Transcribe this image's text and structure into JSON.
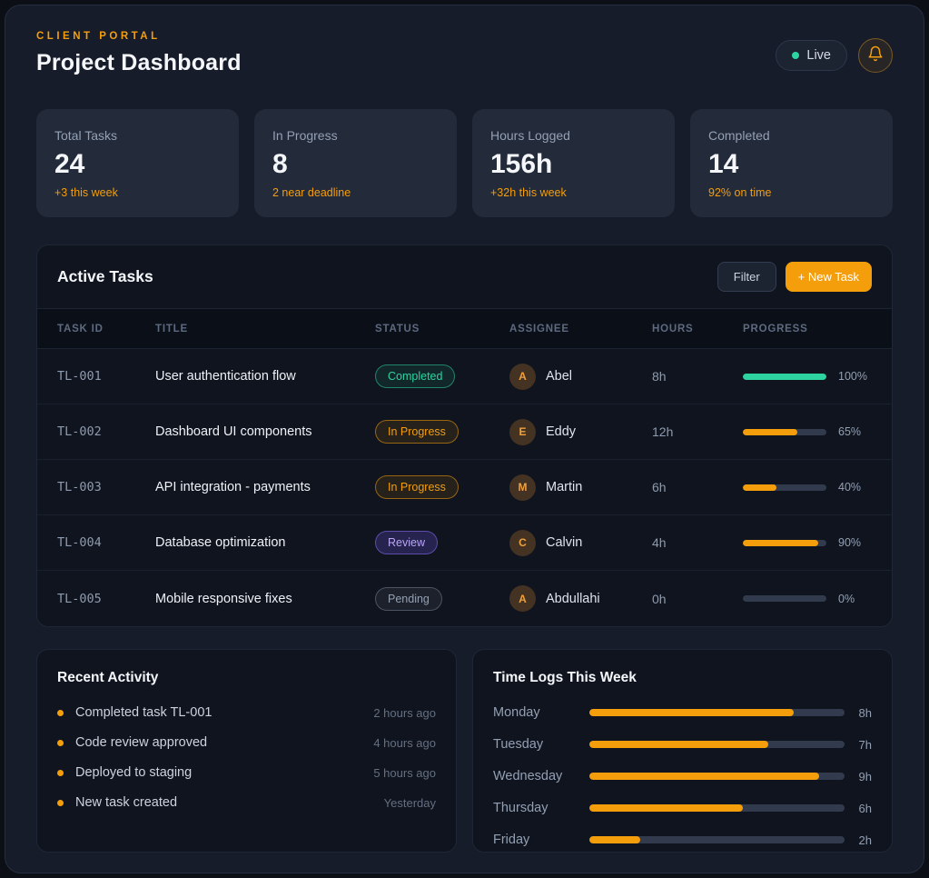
{
  "header": {
    "eyebrow": "CLIENT PORTAL",
    "title": "Project Dashboard",
    "live_label": "Live"
  },
  "stats": [
    {
      "label": "Total Tasks",
      "value": "24",
      "sub": "+3 this week"
    },
    {
      "label": "In Progress",
      "value": "8",
      "sub": "2 near deadline"
    },
    {
      "label": "Hours Logged",
      "value": "156h",
      "sub": "+32h this week"
    },
    {
      "label": "Completed",
      "value": "14",
      "sub": "92% on time"
    }
  ],
  "tasks": {
    "title": "Active Tasks",
    "filter_label": "Filter",
    "new_task_label": "+ New Task",
    "columns": [
      "Task ID",
      "Title",
      "Status",
      "Assignee",
      "Hours",
      "Progress"
    ],
    "rows": [
      {
        "id": "TL-001",
        "title": "User authentication flow",
        "status": "Completed",
        "status_variant": "completed",
        "avatar": "A",
        "assignee": "Abel",
        "hours": "8h",
        "progress": 100,
        "progress_label": "100%",
        "bar_color": "#2dd4a0"
      },
      {
        "id": "TL-002",
        "title": "Dashboard UI components",
        "status": "In Progress",
        "status_variant": "in-progress",
        "avatar": "E",
        "assignee": "Eddy",
        "hours": "12h",
        "progress": 65,
        "progress_label": "65%",
        "bar_color": "#f59e0b"
      },
      {
        "id": "TL-003",
        "title": "API integration - payments",
        "status": "In Progress",
        "status_variant": "in-progress",
        "avatar": "M",
        "assignee": "Martin",
        "hours": "6h",
        "progress": 40,
        "progress_label": "40%",
        "bar_color": "#f59e0b"
      },
      {
        "id": "TL-004",
        "title": "Database optimization",
        "status": "Review",
        "status_variant": "review",
        "avatar": "C",
        "assignee": "Calvin",
        "hours": "4h",
        "progress": 90,
        "progress_label": "90%",
        "bar_color": "#f59e0b"
      },
      {
        "id": "TL-005",
        "title": "Mobile responsive fixes",
        "status": "Pending",
        "status_variant": "pending",
        "avatar": "A",
        "assignee": "Abdullahi",
        "hours": "0h",
        "progress": 0,
        "progress_label": "0%",
        "bar_color": "#f59e0b"
      }
    ]
  },
  "activity": {
    "title": "Recent Activity",
    "items": [
      {
        "text": "Completed task TL-001",
        "time": "2 hours ago"
      },
      {
        "text": "Code review approved",
        "time": "4 hours ago"
      },
      {
        "text": "Deployed to staging",
        "time": "5 hours ago"
      },
      {
        "text": "New task created",
        "time": "Yesterday"
      }
    ]
  },
  "time_logs": {
    "title": "Time Logs This Week",
    "chart_data": {
      "type": "bar",
      "categories": [
        "Monday",
        "Tuesday",
        "Wednesday",
        "Thursday",
        "Friday"
      ],
      "values": [
        8,
        7,
        9,
        6,
        2
      ],
      "unit": "h",
      "max": 10,
      "bar_color": "#f59e0b"
    },
    "days": [
      {
        "day": "Monday",
        "hours": 8,
        "label": "8h"
      },
      {
        "day": "Tuesday",
        "hours": 7,
        "label": "7h"
      },
      {
        "day": "Wednesday",
        "hours": 9,
        "label": "9h"
      },
      {
        "day": "Thursday",
        "hours": 6,
        "label": "6h"
      },
      {
        "day": "Friday",
        "hours": 2,
        "label": "2h"
      }
    ]
  },
  "colors": {
    "accent_orange": "#f59e0b",
    "green": "#2dd4a0",
    "purple": "#b9a6f7",
    "muted_text": "#93a0b4",
    "track": "#323b4d"
  }
}
